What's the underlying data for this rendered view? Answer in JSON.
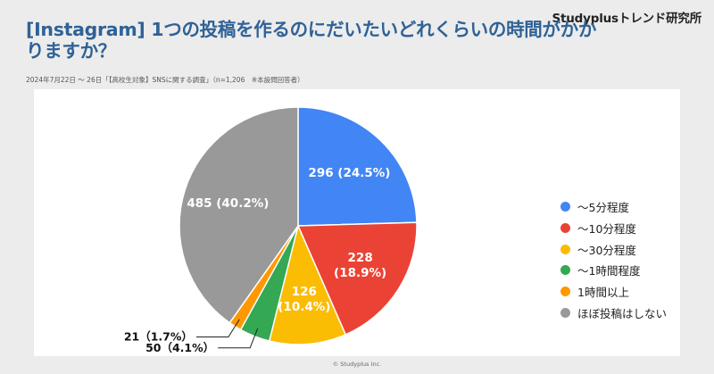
{
  "brand": "Studyplusトレンド研究所",
  "title": "[Instagram] 1つの投稿を作るのにだいたいどれくらいの時間がかかりますか？",
  "subtitle": "2024年7月22日 〜 26日「【高校生対象】SNSに関する調査」（n=1,206　※本設問回答者）",
  "footer": "© Studyplus Inc.",
  "chart_data": {
    "type": "pie",
    "start": "12 o'clock",
    "direction": "clockwise",
    "legend_position": "right",
    "slices": [
      {
        "category": "〜5分程度",
        "count": 296,
        "percent": 24.5,
        "label": "296 (24.5%)",
        "color": "#4285f4"
      },
      {
        "category": "〜10分程度",
        "count": 228,
        "percent": 18.9,
        "label": "228 (18.9%)",
        "color": "#ea4335"
      },
      {
        "category": "〜30分程度",
        "count": 126,
        "percent": 10.4,
        "label": "126 (10.4%)",
        "color": "#fbbc04"
      },
      {
        "category": "〜1時間程度",
        "count": 50,
        "percent": 4.1,
        "label": "50（4.1%）",
        "color": "#34a853"
      },
      {
        "category": "1時間以上",
        "count": 21,
        "percent": 1.7,
        "label": "21（1.7%）",
        "color": "#ff9800"
      },
      {
        "category": "ほぼ投稿はしない",
        "count": 485,
        "percent": 40.2,
        "label": "485 (40.2%)",
        "color": "#999999"
      }
    ]
  }
}
